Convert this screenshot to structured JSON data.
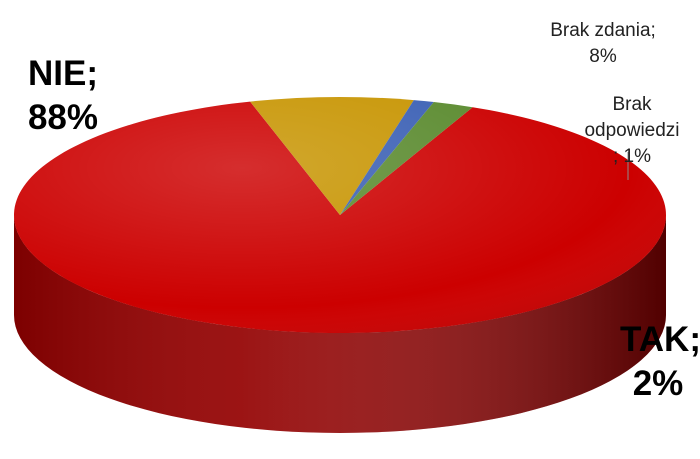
{
  "chart_data": {
    "type": "pie",
    "style": "3d",
    "title": "",
    "slices": [
      {
        "key": "nie",
        "name": "NIE",
        "value": 88,
        "label_line1": "NIE;",
        "label_line2": "88%",
        "color": "#cc0000"
      },
      {
        "key": "brak_zdania",
        "name": "Brak zdania",
        "value": 8,
        "label_line1": "Brak zdania;",
        "label_line2": "8%",
        "color": "#c79400"
      },
      {
        "key": "brak_odp",
        "name": "Brak odpowiedzi",
        "value": 1,
        "label_line1": "Brak",
        "label_line2": "odpowiedzi",
        "label_line3": "; 1%",
        "color": "#3a5fb4"
      },
      {
        "key": "tak",
        "name": "TAK",
        "value": 2,
        "label_line1": "TAK;",
        "label_line2": "2%",
        "color": "#5a8a2e"
      }
    ],
    "legend": "none"
  }
}
